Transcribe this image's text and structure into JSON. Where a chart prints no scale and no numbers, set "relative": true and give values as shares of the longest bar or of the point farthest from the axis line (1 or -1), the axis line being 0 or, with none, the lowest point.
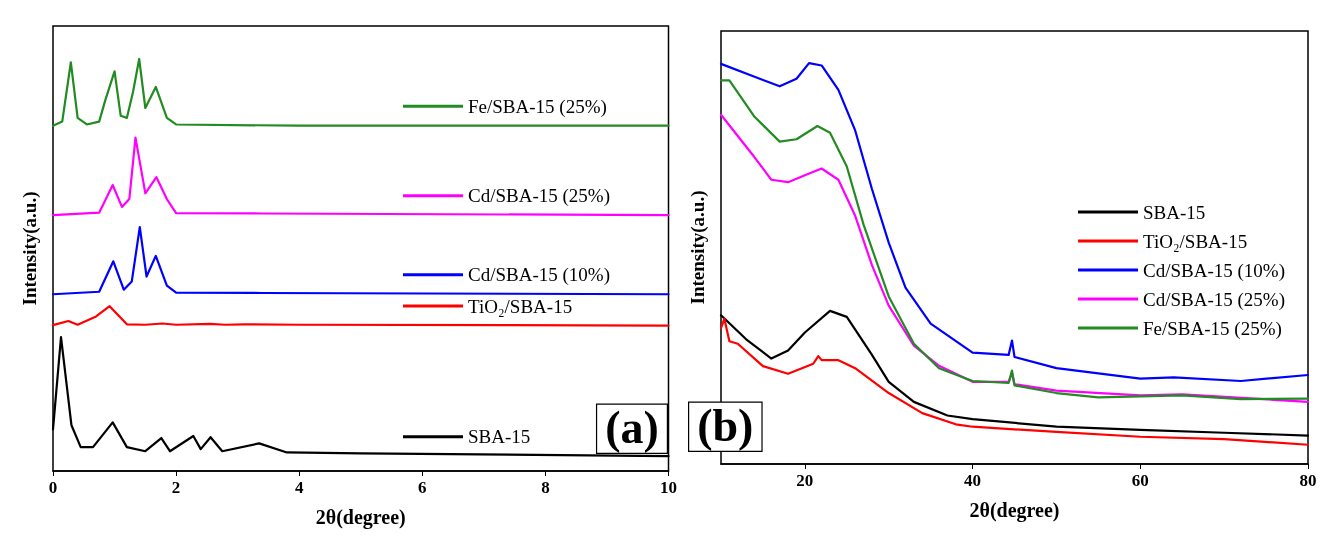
{
  "chart_data": [
    {
      "type": "line",
      "relative": true,
      "xlabel": "2θ(degree)",
      "ylabel": "Intensity(a.u.)",
      "xlim": [
        0,
        10
      ],
      "xticks": [
        0,
        2,
        4,
        6,
        8,
        10
      ],
      "legend": "right",
      "annotations": [
        "(a)"
      ],
      "series": [
        {
          "name": "SBA-15",
          "color": "#000000",
          "x": [
            0,
            0.13,
            0.3,
            0.45,
            0.65,
            0.97,
            1.2,
            1.5,
            1.76,
            1.9,
            2.28,
            2.4,
            2.56,
            2.75,
            3.35,
            3.8,
            5,
            10
          ],
          "values": [
            0.101,
            0.325,
            0.111,
            0.058,
            0.058,
            0.118,
            0.058,
            0.048,
            0.08,
            0.048,
            0.085,
            0.053,
            0.082,
            0.048,
            0.067,
            0.045,
            0.043,
            0.036
          ]
        },
        {
          "name": "TiO₂/SBA-15",
          "color": "#ff0000",
          "x": [
            0,
            0.25,
            0.4,
            0.7,
            0.92,
            1.2,
            1.5,
            1.78,
            2,
            2.55,
            2.8,
            3.1,
            4,
            10
          ],
          "values": [
            0.354,
            0.364,
            0.355,
            0.375,
            0.4,
            0.356,
            0.355,
            0.358,
            0.355,
            0.357,
            0.355,
            0.356,
            0.355,
            0.353
          ]
        },
        {
          "name": "Cd/SBA-15 (10%)",
          "color": "#0000ff",
          "x": [
            0,
            0.75,
            0.98,
            1.15,
            1.28,
            1.41,
            1.52,
            1.67,
            1.85,
            2,
            3.4,
            10
          ],
          "values": [
            0.429,
            0.435,
            0.509,
            0.44,
            0.46,
            0.592,
            0.472,
            0.522,
            0.45,
            0.433,
            0.432,
            0.429
          ]
        },
        {
          "name": "Cd/SBA-15 (25%)",
          "color": "#ff00ff",
          "x": [
            0,
            0.75,
            0.97,
            1.12,
            1.24,
            1.34,
            1.5,
            1.68,
            1.85,
            2,
            3.4,
            10
          ],
          "values": [
            0.621,
            0.627,
            0.694,
            0.641,
            0.66,
            0.809,
            0.674,
            0.713,
            0.66,
            0.626,
            0.625,
            0.621
          ]
        },
        {
          "name": "Fe/SBA-15 (25%)",
          "color": "#228b22",
          "x": [
            0,
            0.15,
            0.29,
            0.4,
            0.55,
            0.75,
            0.85,
            1,
            1.1,
            1.2,
            1.3,
            1.4,
            1.5,
            1.67,
            1.85,
            2,
            4,
            10
          ],
          "values": [
            0.838,
            0.848,
            0.992,
            0.857,
            0.841,
            0.848,
            0.9,
            0.97,
            0.862,
            0.857,
            0.92,
            1,
            0.881,
            0.932,
            0.857,
            0.841,
            0.838,
            0.838
          ]
        }
      ]
    },
    {
      "type": "line",
      "relative": true,
      "xlabel": "2θ(degree)",
      "ylabel": "Intensity(a.u.)",
      "xlim": [
        10,
        80
      ],
      "xticks": [
        20,
        40,
        60,
        80
      ],
      "legend": "center right",
      "annotations": [
        "(b)"
      ],
      "series": [
        {
          "name": "SBA-15",
          "color": "#000000",
          "x": [
            10,
            13,
            16,
            18,
            20,
            23,
            25,
            28,
            30,
            33,
            37,
            40,
            50,
            60,
            70,
            80
          ],
          "values": [
            0.371,
            0.311,
            0.263,
            0.283,
            0.328,
            0.382,
            0.367,
            0.272,
            0.205,
            0.155,
            0.121,
            0.112,
            0.093,
            0.085,
            0.078,
            0.071
          ]
        },
        {
          "name": "TiO₂/SBA-15",
          "color": "#ff0000",
          "x": [
            10,
            10.4,
            11,
            12,
            15,
            18,
            21,
            21.6,
            22,
            24,
            26,
            30,
            34,
            38,
            40,
            50,
            60,
            70,
            80
          ],
          "values": [
            0.339,
            0.362,
            0.306,
            0.3,
            0.244,
            0.225,
            0.25,
            0.269,
            0.259,
            0.259,
            0.239,
            0.177,
            0.127,
            0.099,
            0.093,
            0.08,
            0.068,
            0.062,
            0.048
          ]
        },
        {
          "name": "Cd/SBA-15 (10%)",
          "color": "#0000ff",
          "x": [
            10,
            14,
            17,
            19,
            20.5,
            22,
            24,
            26,
            28,
            30,
            32,
            35,
            40,
            44.3,
            44.7,
            45,
            50,
            60,
            64,
            72,
            80
          ],
          "values": [
            0.998,
            0.966,
            0.942,
            0.961,
            1,
            0.994,
            0.933,
            0.832,
            0.686,
            0.552,
            0.44,
            0.35,
            0.278,
            0.272,
            0.308,
            0.267,
            0.239,
            0.213,
            0.216,
            0.207,
            0.222
          ]
        },
        {
          "name": "Cd/SBA-15 (25%)",
          "color": "#ff00ff",
          "x": [
            10,
            14,
            16,
            18,
            20,
            22,
            24,
            26,
            28,
            30,
            33,
            36,
            40,
            44.3,
            44.7,
            45,
            50,
            60,
            65,
            80
          ],
          "values": [
            0.871,
            0.765,
            0.709,
            0.703,
            0.72,
            0.737,
            0.709,
            0.619,
            0.496,
            0.395,
            0.295,
            0.245,
            0.205,
            0.205,
            0.227,
            0.199,
            0.183,
            0.171,
            0.174,
            0.155
          ]
        },
        {
          "name": "Fe/SBA-15 (25%)",
          "color": "#228b22",
          "x": [
            10,
            11,
            14,
            17,
            19,
            21.5,
            23,
            25,
            27,
            30,
            33,
            36,
            40,
            44.3,
            44.7,
            45,
            50,
            55,
            65,
            72,
            80
          ],
          "values": [
            0.957,
            0.957,
            0.866,
            0.804,
            0.81,
            0.843,
            0.826,
            0.742,
            0.597,
            0.418,
            0.3,
            0.239,
            0.207,
            0.202,
            0.233,
            0.196,
            0.177,
            0.166,
            0.171,
            0.162,
            0.163
          ]
        }
      ]
    }
  ]
}
